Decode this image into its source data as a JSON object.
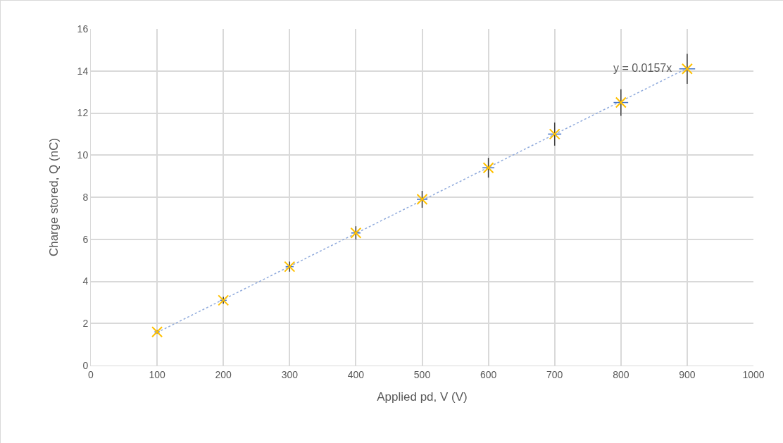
{
  "chart_data": {
    "type": "scatter",
    "xlabel": "Applied pd, V (V)",
    "ylabel": "Charge stored, Q (nC)",
    "x": [
      100,
      200,
      300,
      400,
      500,
      600,
      700,
      800,
      900
    ],
    "series": [
      {
        "color": "#ffc000",
        "marker": "cross",
        "values": [
          1.6,
          3.1,
          4.7,
          6.3,
          7.9,
          9.4,
          11.0,
          12.5,
          14.1
        ],
        "errors": [
          0.08,
          0.16,
          0.24,
          0.32,
          0.4,
          0.47,
          0.55,
          0.63,
          0.71
        ],
        "xerrors": [
          4,
          5,
          6,
          7,
          8,
          9,
          10,
          11,
          12
        ]
      },
      {
        "type": "line",
        "color": "#8faadc",
        "line_style": "dotted",
        "marker": "none",
        "x": [
          100,
          900
        ],
        "values": [
          1.57,
          14.13
        ]
      }
    ],
    "annotations": [
      {
        "text": "y = 0.0157x",
        "x": 900,
        "y": 14.13
      }
    ],
    "xlim": [
      0,
      1000
    ],
    "xticks": [
      0,
      100,
      200,
      300,
      400,
      500,
      600,
      700,
      800,
      900,
      1000
    ],
    "ylim": [
      0,
      16
    ],
    "yticks": [
      0,
      2,
      4,
      6,
      8,
      10,
      12,
      14,
      16
    ],
    "grid": true
  }
}
